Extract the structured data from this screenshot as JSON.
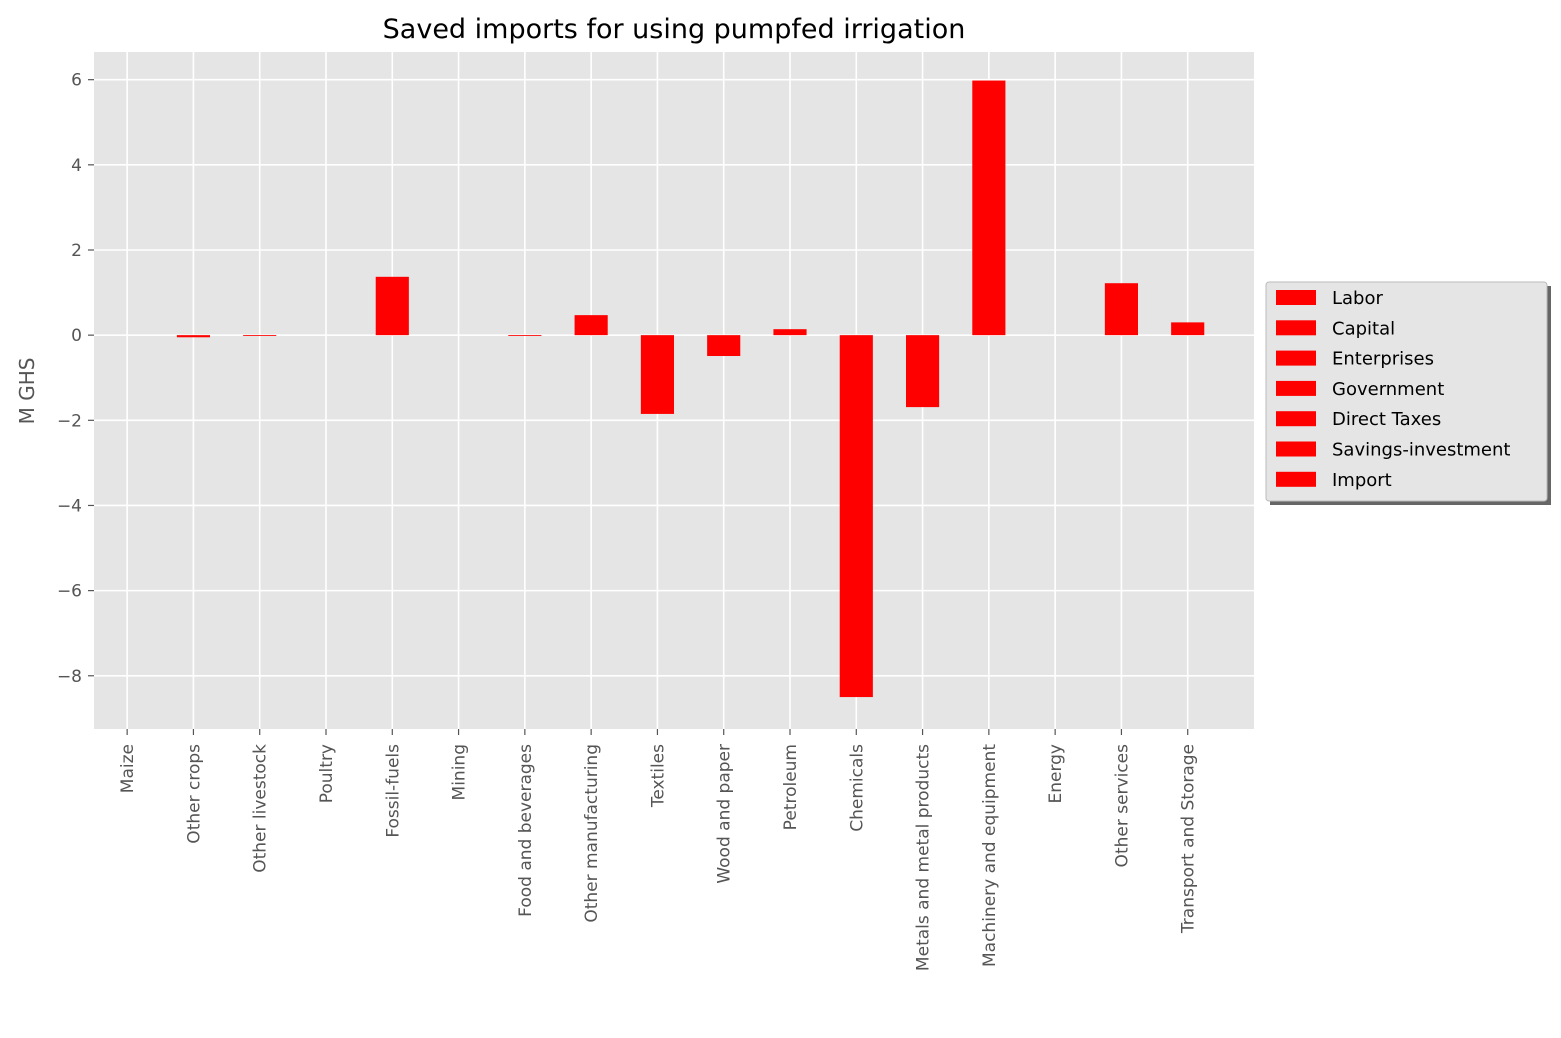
{
  "chart_data": {
    "type": "bar",
    "title": "Saved imports for using pumpfed irrigation",
    "ylabel": "M GHS",
    "xlabel": "",
    "ylim": [
      -9.25,
      6.65
    ],
    "yticks": [
      6,
      4,
      2,
      0,
      -2,
      -4,
      -6,
      -8
    ],
    "ytick_labels": [
      "6",
      "4",
      "2",
      "0",
      "−2",
      "−4",
      "−6",
      "−8"
    ],
    "grid": true,
    "legend_position": "center-right outside",
    "bar_color": "#ff0000",
    "background_color": "#e5e5e5",
    "grid_color": "#ffffff",
    "categories": [
      "Maize",
      "Other crops",
      "Other livestock",
      "Poultry",
      "Fossil-fuels",
      "Mining",
      "Food and beverages",
      "Other manufacturing",
      "Textiles",
      "Wood and paper",
      "Petroleum",
      "Chemicals",
      "Metals and metal products",
      "Machinery and equipment",
      "Energy",
      "Other services",
      "Transport and Storage"
    ],
    "values": [
      0,
      -0.05,
      -0.02,
      0,
      1.37,
      0,
      -0.02,
      0.47,
      -1.85,
      -0.49,
      0.14,
      -8.5,
      -1.69,
      5.98,
      0,
      1.22,
      0.3
    ],
    "legend": [
      "Labor",
      "Capital",
      "Enterprises",
      "Government",
      "Direct Taxes",
      "Savings-investment",
      "Import"
    ]
  }
}
